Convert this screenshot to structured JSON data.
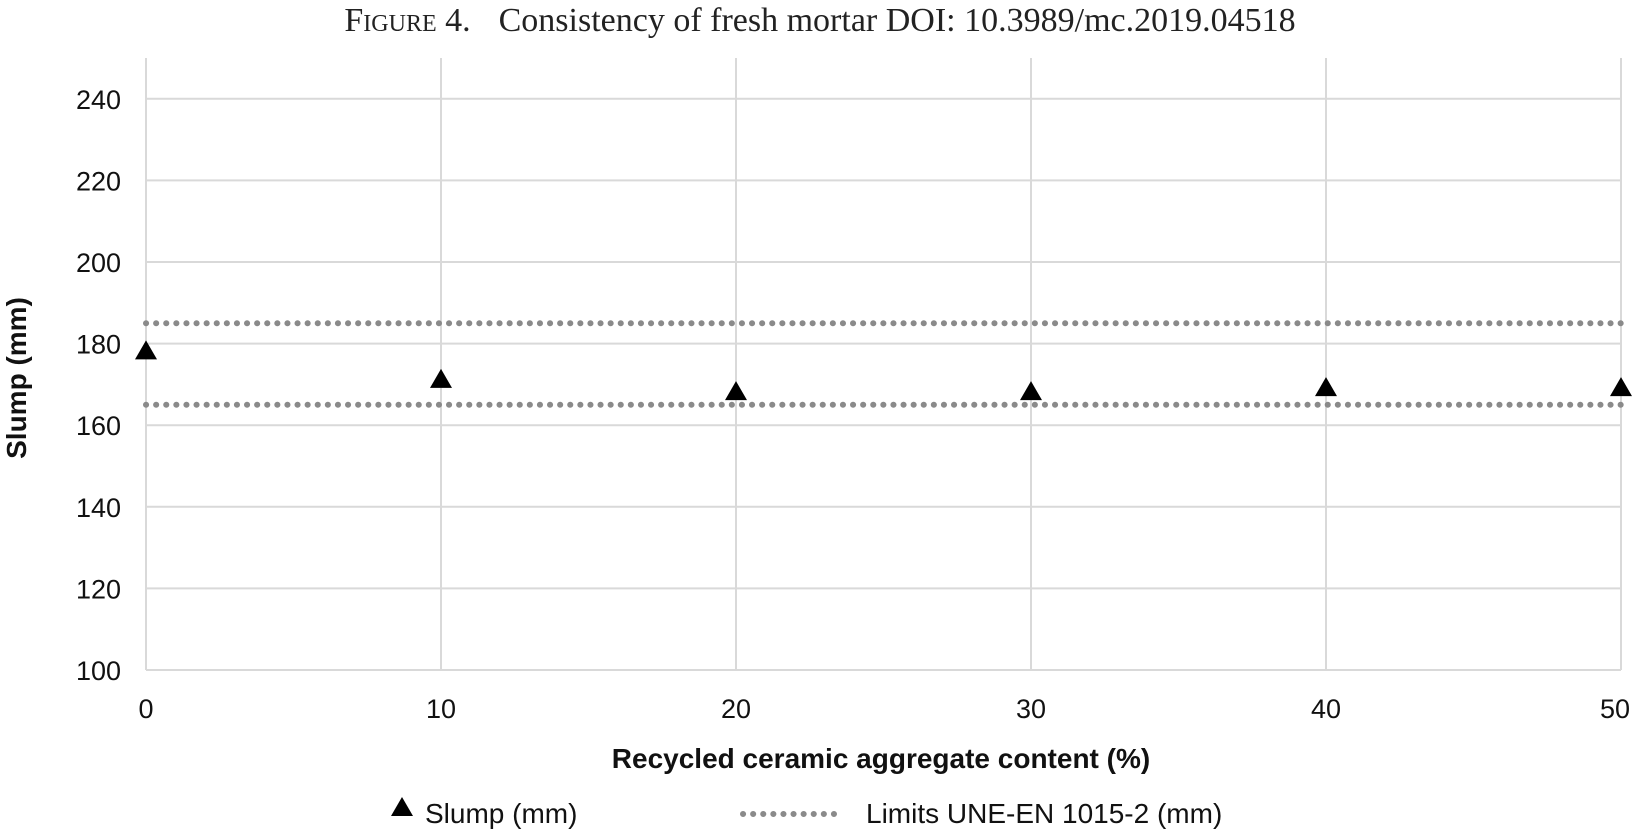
{
  "figure": {
    "label": "Figure 4.",
    "caption": "Consistency of fresh mortar DOI: 10.3989/mc.2019.04518"
  },
  "chart_data": {
    "type": "scatter",
    "xlabel": "Recycled ceramic aggregate content (%)",
    "ylabel": "Slump (mm)",
    "xlim": [
      0,
      50
    ],
    "ylim": [
      100,
      250
    ],
    "xticks": [
      0,
      10,
      20,
      30,
      40,
      50
    ],
    "yticks": [
      100,
      120,
      140,
      160,
      180,
      200,
      220,
      240
    ],
    "grid": true,
    "legend_position": "bottom",
    "series": [
      {
        "name": "Slump (mm)",
        "marker": "triangle",
        "color": "#000000",
        "x": [
          0,
          10,
          20,
          30,
          40,
          50
        ],
        "y": [
          178,
          171,
          168,
          168,
          169,
          169
        ]
      }
    ],
    "reference_lines": [
      {
        "name": "Limits UNE-EN 1015-2 (mm)",
        "style": "dotted",
        "color": "#8a8a8a",
        "y": [
          165,
          185
        ]
      }
    ],
    "legend": [
      "Slump (mm)",
      "Limits UNE-EN 1015-2 (mm)"
    ]
  }
}
